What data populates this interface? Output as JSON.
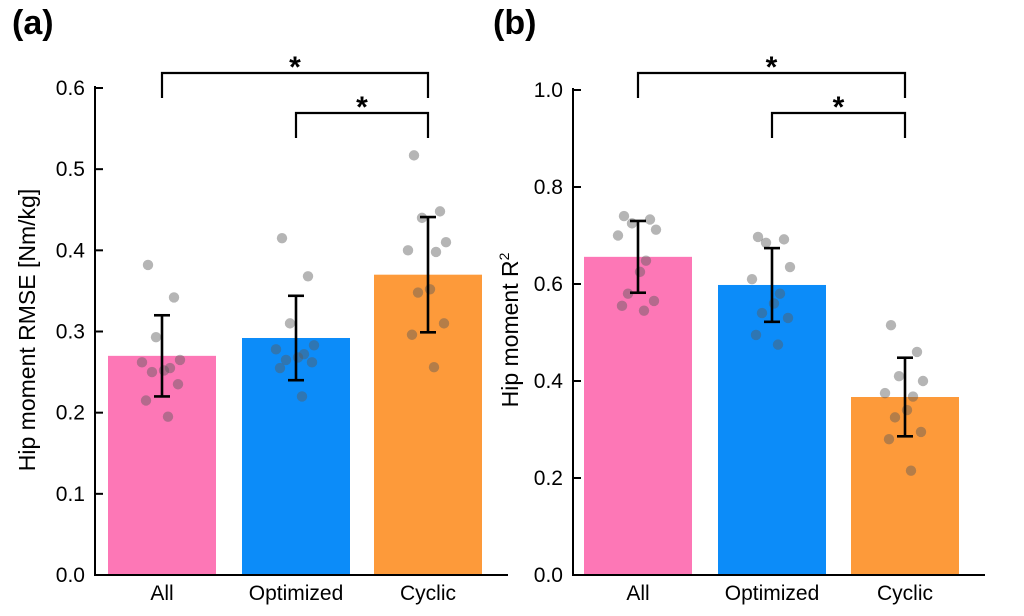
{
  "chart_data": [
    {
      "panel_label": "(a)",
      "type": "bar",
      "categories": [
        "All",
        "Optimized",
        "Cyclic"
      ],
      "values": [
        0.27,
        0.292,
        0.37
      ],
      "error": [
        0.05,
        0.052,
        0.071
      ],
      "colors": [
        "#fd77b6",
        "#0c8cf9",
        "#fd9a3a"
      ],
      "ylabel": "Hip moment RMSE [Nm/kg]",
      "ylim": [
        0,
        0.6
      ],
      "yticks": [
        "0.0",
        "0.1",
        "0.2",
        "0.3",
        "0.4",
        "0.5",
        "0.6"
      ],
      "points": [
        [
          0.382,
          0.342,
          0.293,
          0.265,
          0.262,
          0.255,
          0.252,
          0.25,
          0.235,
          0.215,
          0.195
        ],
        [
          0.415,
          0.368,
          0.31,
          0.283,
          0.278,
          0.272,
          0.268,
          0.265,
          0.262,
          0.255,
          0.22
        ],
        [
          0.517,
          0.448,
          0.44,
          0.41,
          0.4,
          0.398,
          0.352,
          0.348,
          0.31,
          0.296,
          0.256
        ]
      ],
      "significance": [
        {
          "from": "All",
          "to": "Cyclic",
          "label": "*"
        },
        {
          "from": "Optimized",
          "to": "Cyclic",
          "label": "*"
        }
      ]
    },
    {
      "panel_label": "(b)",
      "type": "bar",
      "categories": [
        "All",
        "Optimized",
        "Cyclic"
      ],
      "values": [
        0.656,
        0.598,
        0.367
      ],
      "error": [
        0.074,
        0.076,
        0.081
      ],
      "colors": [
        "#fd77b6",
        "#0c8cf9",
        "#fd9a3a"
      ],
      "ylabel_main": "Hip moment R",
      "ylabel_sup": "2",
      "ylim": [
        0,
        1.0
      ],
      "yticks": [
        "0.0",
        "0.2",
        "0.4",
        "0.6",
        "0.8",
        "1.0"
      ],
      "points": [
        [
          0.74,
          0.733,
          0.725,
          0.712,
          0.7,
          0.648,
          0.625,
          0.58,
          0.565,
          0.555,
          0.545
        ],
        [
          0.697,
          0.692,
          0.685,
          0.635,
          0.61,
          0.58,
          0.56,
          0.54,
          0.53,
          0.495,
          0.475
        ],
        [
          0.515,
          0.46,
          0.41,
          0.4,
          0.375,
          0.368,
          0.34,
          0.325,
          0.295,
          0.28,
          0.215
        ]
      ],
      "significance": [
        {
          "from": "All",
          "to": "Cyclic",
          "label": "*"
        },
        {
          "from": "Optimized",
          "to": "Cyclic",
          "label": "*"
        }
      ]
    }
  ]
}
